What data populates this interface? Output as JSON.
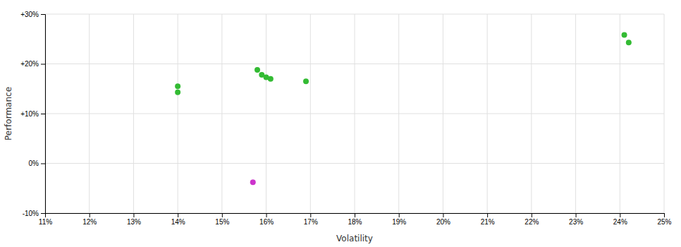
{
  "chart_data": {
    "type": "scatter",
    "xlabel": "Volatility",
    "ylabel": "Performance",
    "xlim": [
      0.11,
      0.25
    ],
    "ylim": [
      -0.1,
      0.3
    ],
    "xticks": [
      {
        "value": 0.11,
        "label": "11%"
      },
      {
        "value": 0.12,
        "label": "12%"
      },
      {
        "value": 0.13,
        "label": "13%"
      },
      {
        "value": 0.14,
        "label": "14%"
      },
      {
        "value": 0.15,
        "label": "15%"
      },
      {
        "value": 0.16,
        "label": "16%"
      },
      {
        "value": 0.17,
        "label": "17%"
      },
      {
        "value": 0.18,
        "label": "18%"
      },
      {
        "value": 0.19,
        "label": "19%"
      },
      {
        "value": 0.2,
        "label": "20%"
      },
      {
        "value": 0.21,
        "label": "21%"
      },
      {
        "value": 0.22,
        "label": "22%"
      },
      {
        "value": 0.23,
        "label": "23%"
      },
      {
        "value": 0.24,
        "label": "24%"
      },
      {
        "value": 0.25,
        "label": "25%"
      }
    ],
    "yticks": [
      {
        "value": -0.1,
        "label": "-10%"
      },
      {
        "value": 0.0,
        "label": "0%"
      },
      {
        "value": 0.1,
        "label": "+10%"
      },
      {
        "value": 0.2,
        "label": "+20%"
      },
      {
        "value": 0.3,
        "label": "+30%"
      }
    ],
    "grid": true,
    "series": [
      {
        "color": "#33bb33",
        "x": [
          0.14,
          0.14,
          0.158,
          0.159,
          0.16,
          0.161,
          0.169,
          0.241,
          0.242
        ],
        "values": [
          0.155,
          0.143,
          0.188,
          0.178,
          0.173,
          0.17,
          0.165,
          0.258,
          0.243
        ]
      },
      {
        "color": "#cc33cc",
        "x": [
          0.157
        ],
        "values": [
          -0.038
        ]
      }
    ]
  }
}
